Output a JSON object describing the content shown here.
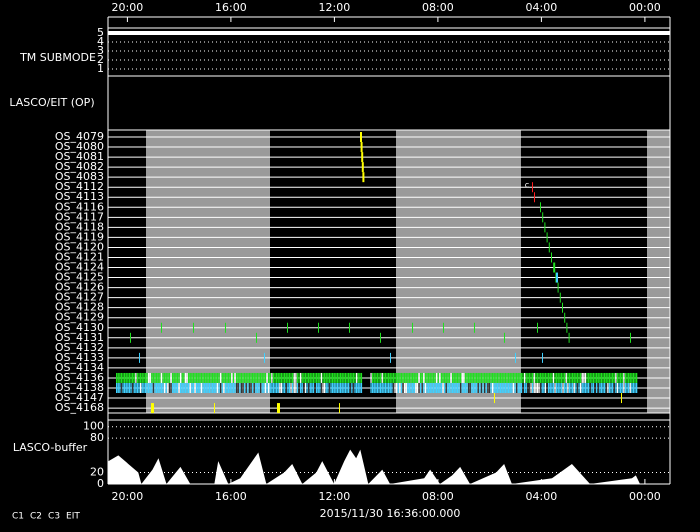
{
  "time_axis": {
    "xlim": [
      20.75,
      -0.97
    ],
    "xticks": [
      {
        "value": 20,
        "label": "20:00"
      },
      {
        "value": 16,
        "label": "16:00"
      },
      {
        "value": 12,
        "label": "12:00"
      },
      {
        "value": 8,
        "label": "08:00"
      },
      {
        "value": 4,
        "label": "04:00"
      },
      {
        "value": 0,
        "label": "00:00"
      }
    ]
  },
  "tm_submode": {
    "label": "TM SUBMODE",
    "yticks": [
      5,
      4,
      3,
      2,
      1
    ],
    "value": 5
  },
  "lasco_eit": {
    "label": "LASCO/EIT (OP)",
    "rows": [
      "OS_4079",
      "OS_4080",
      "OS_4081",
      "OS_4082",
      "OS_4083",
      "OS_4112",
      "OS_4113",
      "OS_4116",
      "OS_4117",
      "OS_4118",
      "OS_4119",
      "OS_4120",
      "OS_4121",
      "OS_4124",
      "OS_4125",
      "OS_4126",
      "OS_4127",
      "OS_4128",
      "OS_4129",
      "OS_4130",
      "OS_4131",
      "OS_4132",
      "OS_4133",
      "OS_4134",
      "OS_4136",
      "OS_4138",
      "OS_4147",
      "OS_4168"
    ],
    "annotation": "c"
  },
  "chart_data": {
    "type": "area",
    "title": "LASCO-buffer",
    "ylim": [
      0,
      110
    ],
    "yticks": [
      100,
      80,
      20,
      0
    ],
    "color": "#ffffff",
    "x": [
      20.73,
      20.35,
      19.58,
      19.46,
      19.03,
      18.8,
      18.49,
      17.95,
      17.57,
      16.64,
      16.49,
      16.1,
      15.64,
      14.94,
      14.63,
      13.94,
      13.63,
      13.24,
      12.7,
      12.47,
      12.01,
      11.62,
      11.39,
      11.16,
      11.0,
      10.69,
      10.15,
      9.85,
      8.53,
      8.3,
      7.92,
      7.45,
      7.14,
      6.76,
      5.75,
      5.44,
      5.14,
      3.59,
      2.82,
      2.12,
      0.5,
      0.35,
      0.19,
      -0.97
    ],
    "values": [
      40,
      50,
      20,
      0,
      25,
      45,
      0,
      30,
      0,
      0,
      40,
      0,
      10,
      55,
      0,
      20,
      35,
      0,
      20,
      40,
      0,
      40,
      60,
      45,
      60,
      0,
      25,
      0,
      10,
      25,
      0,
      15,
      30,
      0,
      20,
      35,
      0,
      10,
      35,
      0,
      10,
      15,
      0,
      0
    ]
  },
  "legend": [
    {
      "name": "C1",
      "color": "#ff2020"
    },
    {
      "name": "C2",
      "color": "#20e020"
    },
    {
      "name": "C3",
      "color": "#40d0ff"
    },
    {
      "name": "EIT",
      "color": "#ffffff"
    }
  ],
  "footer": "2015/11/30 16:36:00.000"
}
